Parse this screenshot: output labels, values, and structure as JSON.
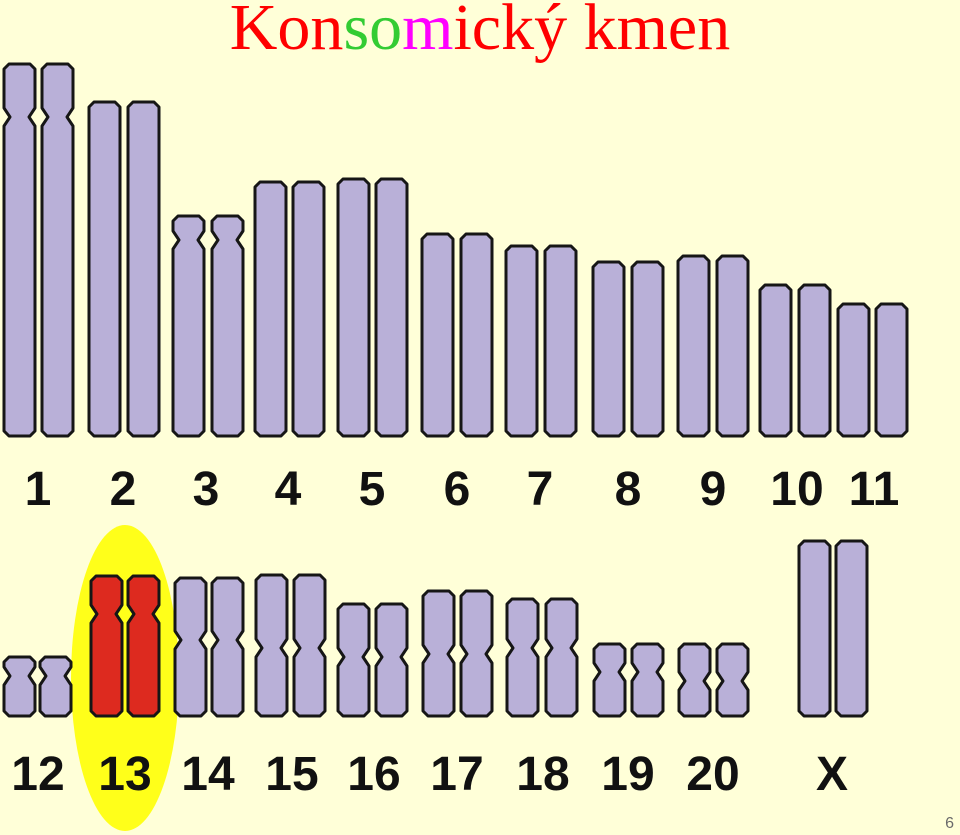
{
  "title": {
    "parts": [
      {
        "text": "Kon",
        "color": "#ff0000"
      },
      {
        "text": "so",
        "color": "#33cc33"
      },
      {
        "text": "m",
        "color": "#ff00ff"
      },
      {
        "text": "ický kmen",
        "color": "#ff0000"
      }
    ]
  },
  "slide_number": "6",
  "colors": {
    "background": "#ffffd8",
    "chromosome_fill": "#b9b0d8",
    "chromosome_stroke": "#161616",
    "highlight_fill": "#dd2a1f",
    "highlight_oval": "#ffff1a",
    "label": "#111111"
  },
  "chromosomes": [
    {
      "label": "1",
      "highlighted": false
    },
    {
      "label": "2",
      "highlighted": false
    },
    {
      "label": "3",
      "highlighted": false
    },
    {
      "label": "4",
      "highlighted": false
    },
    {
      "label": "5",
      "highlighted": false
    },
    {
      "label": "6",
      "highlighted": false
    },
    {
      "label": "7",
      "highlighted": false
    },
    {
      "label": "8",
      "highlighted": false
    },
    {
      "label": "9",
      "highlighted": false
    },
    {
      "label": "10",
      "highlighted": false
    },
    {
      "label": "11",
      "highlighted": false
    },
    {
      "label": "12",
      "highlighted": false
    },
    {
      "label": "13",
      "highlighted": true
    },
    {
      "label": "14",
      "highlighted": false
    },
    {
      "label": "15",
      "highlighted": false
    },
    {
      "label": "16",
      "highlighted": false
    },
    {
      "label": "17",
      "highlighted": false
    },
    {
      "label": "18",
      "highlighted": false
    },
    {
      "label": "19",
      "highlighted": false
    },
    {
      "label": "20",
      "highlighted": false
    },
    {
      "label": "X",
      "highlighted": false
    }
  ]
}
